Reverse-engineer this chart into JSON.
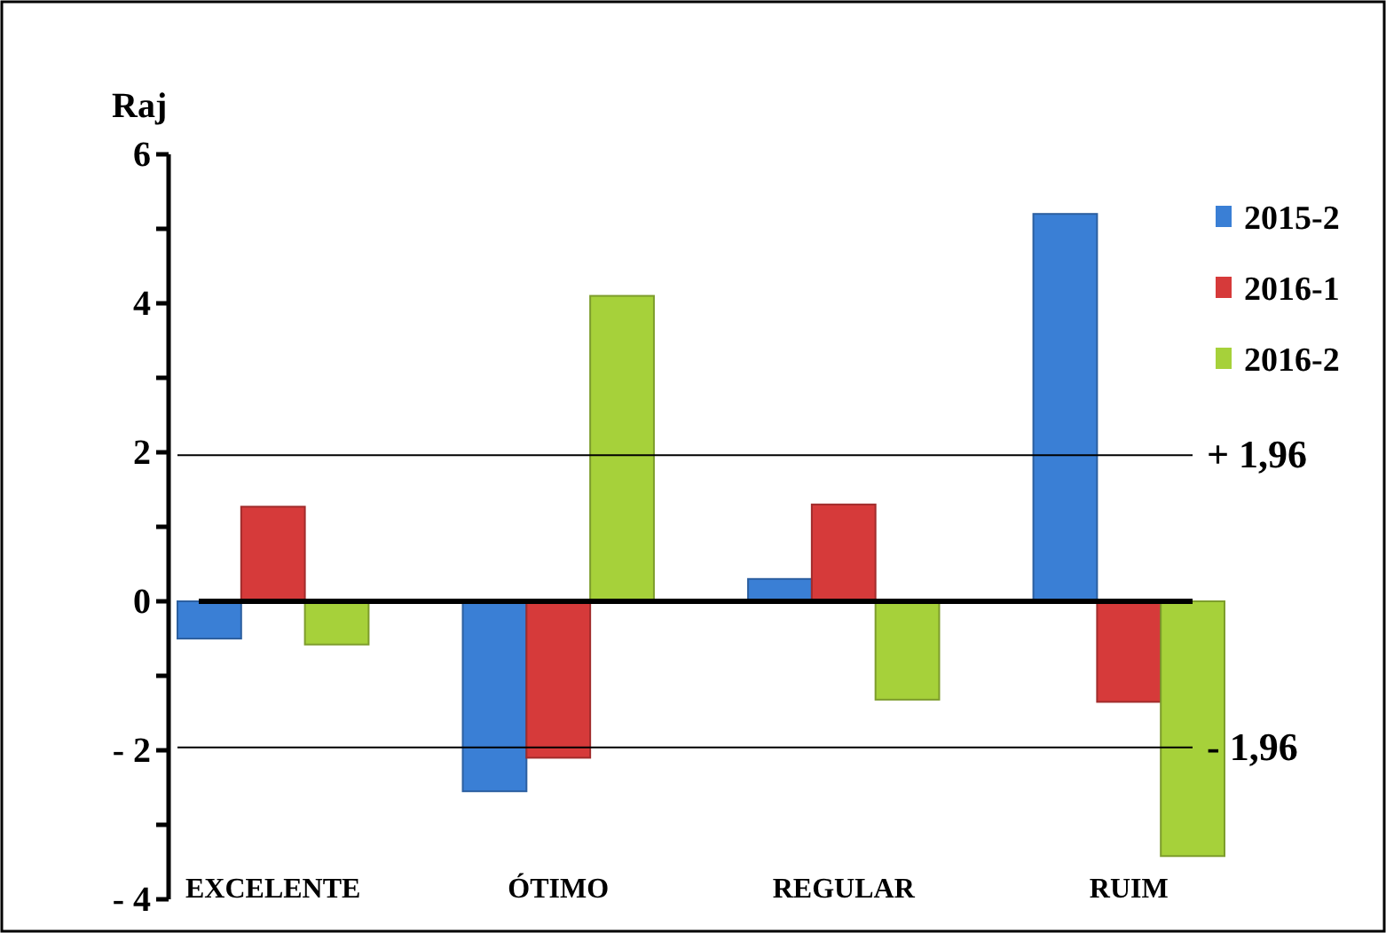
{
  "chart_data": {
    "type": "bar",
    "ylabel": "Raj",
    "categories": [
      "EXCELENTE",
      "ÓTIMO",
      "REGULAR",
      "RUIM"
    ],
    "series": [
      {
        "name": "2015-2",
        "color": "#3a7fd5",
        "values": [
          -0.5,
          -2.55,
          0.3,
          5.2
        ]
      },
      {
        "name": "2016-1",
        "color": "#d63a3a",
        "values": [
          1.27,
          -2.1,
          1.3,
          -1.35
        ]
      },
      {
        "name": "2016-2",
        "color": "#a6d13a",
        "values": [
          -0.58,
          4.1,
          -1.32,
          -3.42
        ]
      }
    ],
    "ylim": [
      -4,
      6
    ],
    "yticks": [
      {
        "value": -4,
        "label": "- 4"
      },
      {
        "value": -3,
        "label": null
      },
      {
        "value": -2,
        "label": "- 2"
      },
      {
        "value": -1,
        "label": null
      },
      0,
      {
        "value": 1,
        "label": null
      },
      2,
      {
        "value": 3,
        "label": null
      },
      4,
      {
        "value": 5,
        "label": null
      },
      6
    ],
    "ref_lines": [
      {
        "axis": "y",
        "value": 1.96,
        "label": "+ 1,96",
        "color": "#000000"
      },
      {
        "axis": "y",
        "value": -1.96,
        "label": "- 1,96",
        "color": "#000000"
      }
    ],
    "legend": "top right"
  }
}
